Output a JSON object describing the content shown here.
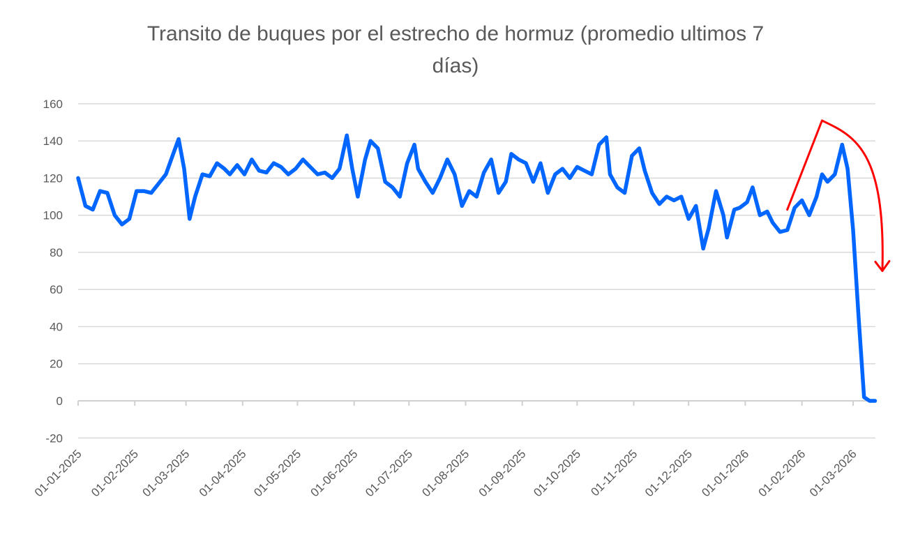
{
  "chart_data": {
    "type": "line",
    "title": "Transito de buques por el estrecho de hormuz (promedio ultimos 7 días)",
    "title_lines": [
      "Transito de buques por el estrecho de hormuz (promedio ultimos 7",
      "días)"
    ],
    "xlabel": "",
    "ylabel": "",
    "ylim": [
      -20,
      160
    ],
    "yticks": [
      -20,
      0,
      20,
      40,
      60,
      80,
      100,
      120,
      140,
      160
    ],
    "xtick_labels": [
      "01-01-2025",
      "01-02-2025",
      "01-03-2025",
      "01-04-2025",
      "01-05-2025",
      "01-06-2025",
      "01-07-2025",
      "01-08-2025",
      "01-09-2025",
      "01-10-2025",
      "01-11-2025",
      "01-12-2025",
      "01-01-2026",
      "01-02-2026",
      "01-03-2026"
    ],
    "grid": "horizontal",
    "legend": "none",
    "series": [
      {
        "name": "Transito de buques (promedio 7 días)",
        "color": "#0066FF",
        "x": [
          "2025-01-01",
          "2025-01-05",
          "2025-01-09",
          "2025-01-13",
          "2025-01-17",
          "2025-01-21",
          "2025-01-25",
          "2025-01-29",
          "2025-02-02",
          "2025-02-06",
          "2025-02-10",
          "2025-02-14",
          "2025-02-18",
          "2025-02-22",
          "2025-02-25",
          "2025-02-28",
          "2025-03-03",
          "2025-03-06",
          "2025-03-10",
          "2025-03-14",
          "2025-03-18",
          "2025-03-22",
          "2025-03-25",
          "2025-03-29",
          "2025-04-02",
          "2025-04-06",
          "2025-04-10",
          "2025-04-14",
          "2025-04-18",
          "2025-04-22",
          "2025-04-26",
          "2025-04-30",
          "2025-05-04",
          "2025-05-08",
          "2025-05-12",
          "2025-05-16",
          "2025-05-20",
          "2025-05-24",
          "2025-05-28",
          "2025-05-31",
          "2025-06-03",
          "2025-06-07",
          "2025-06-10",
          "2025-06-14",
          "2025-06-18",
          "2025-06-22",
          "2025-06-26",
          "2025-06-30",
          "2025-07-04",
          "2025-07-06",
          "2025-07-10",
          "2025-07-14",
          "2025-07-18",
          "2025-07-22",
          "2025-07-26",
          "2025-07-30",
          "2025-08-03",
          "2025-08-07",
          "2025-08-11",
          "2025-08-15",
          "2025-08-19",
          "2025-08-23",
          "2025-08-26",
          "2025-08-30",
          "2025-09-03",
          "2025-09-07",
          "2025-09-11",
          "2025-09-15",
          "2025-09-19",
          "2025-09-23",
          "2025-09-27",
          "2025-10-01",
          "2025-10-05",
          "2025-10-09",
          "2025-10-13",
          "2025-10-17",
          "2025-10-19",
          "2025-10-23",
          "2025-10-27",
          "2025-10-31",
          "2025-11-04",
          "2025-11-07",
          "2025-11-11",
          "2025-11-15",
          "2025-11-19",
          "2025-11-23",
          "2025-11-27",
          "2025-12-01",
          "2025-12-05",
          "2025-12-09",
          "2025-12-12",
          "2025-12-16",
          "2025-12-20",
          "2025-12-22",
          "2025-12-26",
          "2025-12-29",
          "2026-01-02",
          "2026-01-05",
          "2026-01-09",
          "2026-01-13",
          "2026-01-16",
          "2026-01-20",
          "2026-01-24",
          "2026-01-28",
          "2026-02-01",
          "2026-02-05",
          "2026-02-09",
          "2026-02-12",
          "2026-02-15",
          "2026-02-19",
          "2026-02-23",
          "2026-02-26",
          "2026-03-01",
          "2026-03-04",
          "2026-03-07",
          "2026-03-10",
          "2026-03-13"
        ],
        "values": [
          120,
          105,
          103,
          113,
          112,
          100,
          95,
          98,
          113,
          113,
          112,
          117,
          122,
          133,
          141,
          125,
          98,
          110,
          122,
          121,
          128,
          125,
          122,
          127,
          122,
          130,
          124,
          123,
          128,
          126,
          122,
          125,
          130,
          126,
          122,
          123,
          120,
          125,
          143,
          125,
          110,
          130,
          140,
          136,
          118,
          115,
          110,
          128,
          138,
          125,
          118,
          112,
          120,
          130,
          122,
          105,
          113,
          110,
          123,
          130,
          112,
          118,
          133,
          130,
          128,
          118,
          128,
          112,
          122,
          125,
          120,
          126,
          124,
          122,
          138,
          142,
          122,
          115,
          112,
          132,
          136,
          124,
          112,
          106,
          110,
          108,
          110,
          98,
          105,
          82,
          93,
          113,
          100,
          88,
          103,
          104,
          107,
          115,
          100,
          102,
          96,
          91,
          92,
          104,
          108,
          100,
          110,
          122,
          118,
          122,
          138,
          125,
          92,
          45,
          2,
          0,
          0
        ]
      }
    ],
    "annotations": [
      {
        "type": "hand-drawn-arrow",
        "color": "#FF0000",
        "description": "Red arrow rising to a peak then curving sharply downward, indicating collapse in transit",
        "from": {
          "x": "2026-01-24",
          "y": 103
        },
        "peak": {
          "x": "2026-02-12",
          "y": 151
        },
        "to": {
          "x": "2026-03-17",
          "y": 70
        }
      }
    ]
  }
}
